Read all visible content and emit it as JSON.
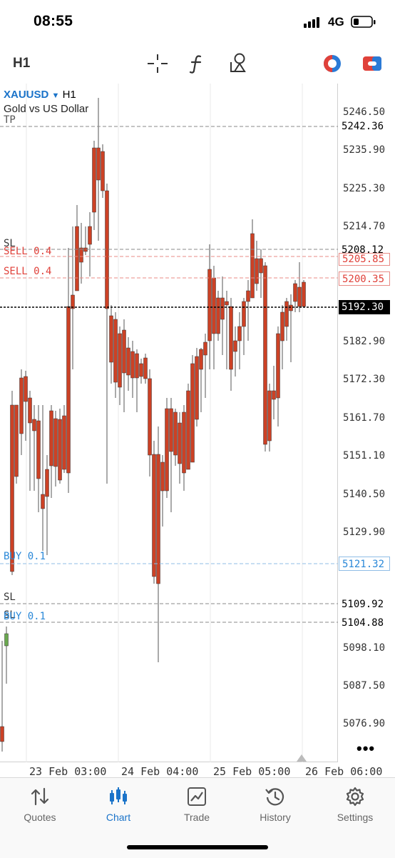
{
  "status_bar": {
    "time": "08:55",
    "network": "4G"
  },
  "toolbar": {
    "timeframe": "H1",
    "icons": [
      "crosshair-icon",
      "indicators-icon",
      "objects-icon",
      "one-click-trading-icon",
      "trade-panel-icon"
    ]
  },
  "chart": {
    "symbol": "XAUUSD",
    "symbol_timeframe": "H1",
    "description": "Gold vs US Dollar",
    "price_scale": [
      "5246.50",
      "5235.90",
      "5225.30",
      "5214.70",
      "5182.90",
      "5172.30",
      "5161.70",
      "5151.10",
      "5140.50",
      "5129.90",
      "5098.10",
      "5087.50",
      "5076.90"
    ],
    "levels": [
      {
        "label": "TP",
        "price": "5242.36",
        "color": "#555555"
      },
      {
        "label": "SL",
        "price": "5208.12",
        "color": "#555555"
      },
      {
        "label": "SELL 0.4",
        "price": "5205.85",
        "color": "#e0413a"
      },
      {
        "label": "SELL 0.4",
        "price": "5200.35",
        "color": "#e0413a"
      },
      {
        "label": "",
        "price": "5192.30",
        "color": "#000000"
      },
      {
        "label": "BUY 0.1",
        "price": "5121.32",
        "color": "#2a88d8"
      },
      {
        "label": "SL",
        "price": "5109.92",
        "color": "#555555"
      },
      {
        "label": "SL",
        "price": "5104.88",
        "color": "#555555"
      },
      {
        "label": "BUY 0.1",
        "price": "",
        "color": "#2a88d8"
      }
    ],
    "time_axis": [
      "23 Feb 03:00",
      "24 Feb 04:00",
      "25 Feb 05:00",
      "26 Feb 06:00"
    ],
    "colors": {
      "bull": "#6aa84f",
      "bear": "#cc4125"
    }
  },
  "tabs": [
    {
      "label": "Quotes",
      "icon": "quotes-icon",
      "active": false
    },
    {
      "label": "Chart",
      "icon": "chart-icon",
      "active": true
    },
    {
      "label": "Trade",
      "icon": "trade-icon",
      "active": false
    },
    {
      "label": "History",
      "icon": "history-icon",
      "active": false
    },
    {
      "label": "Settings",
      "icon": "settings-icon",
      "active": false
    }
  ]
}
